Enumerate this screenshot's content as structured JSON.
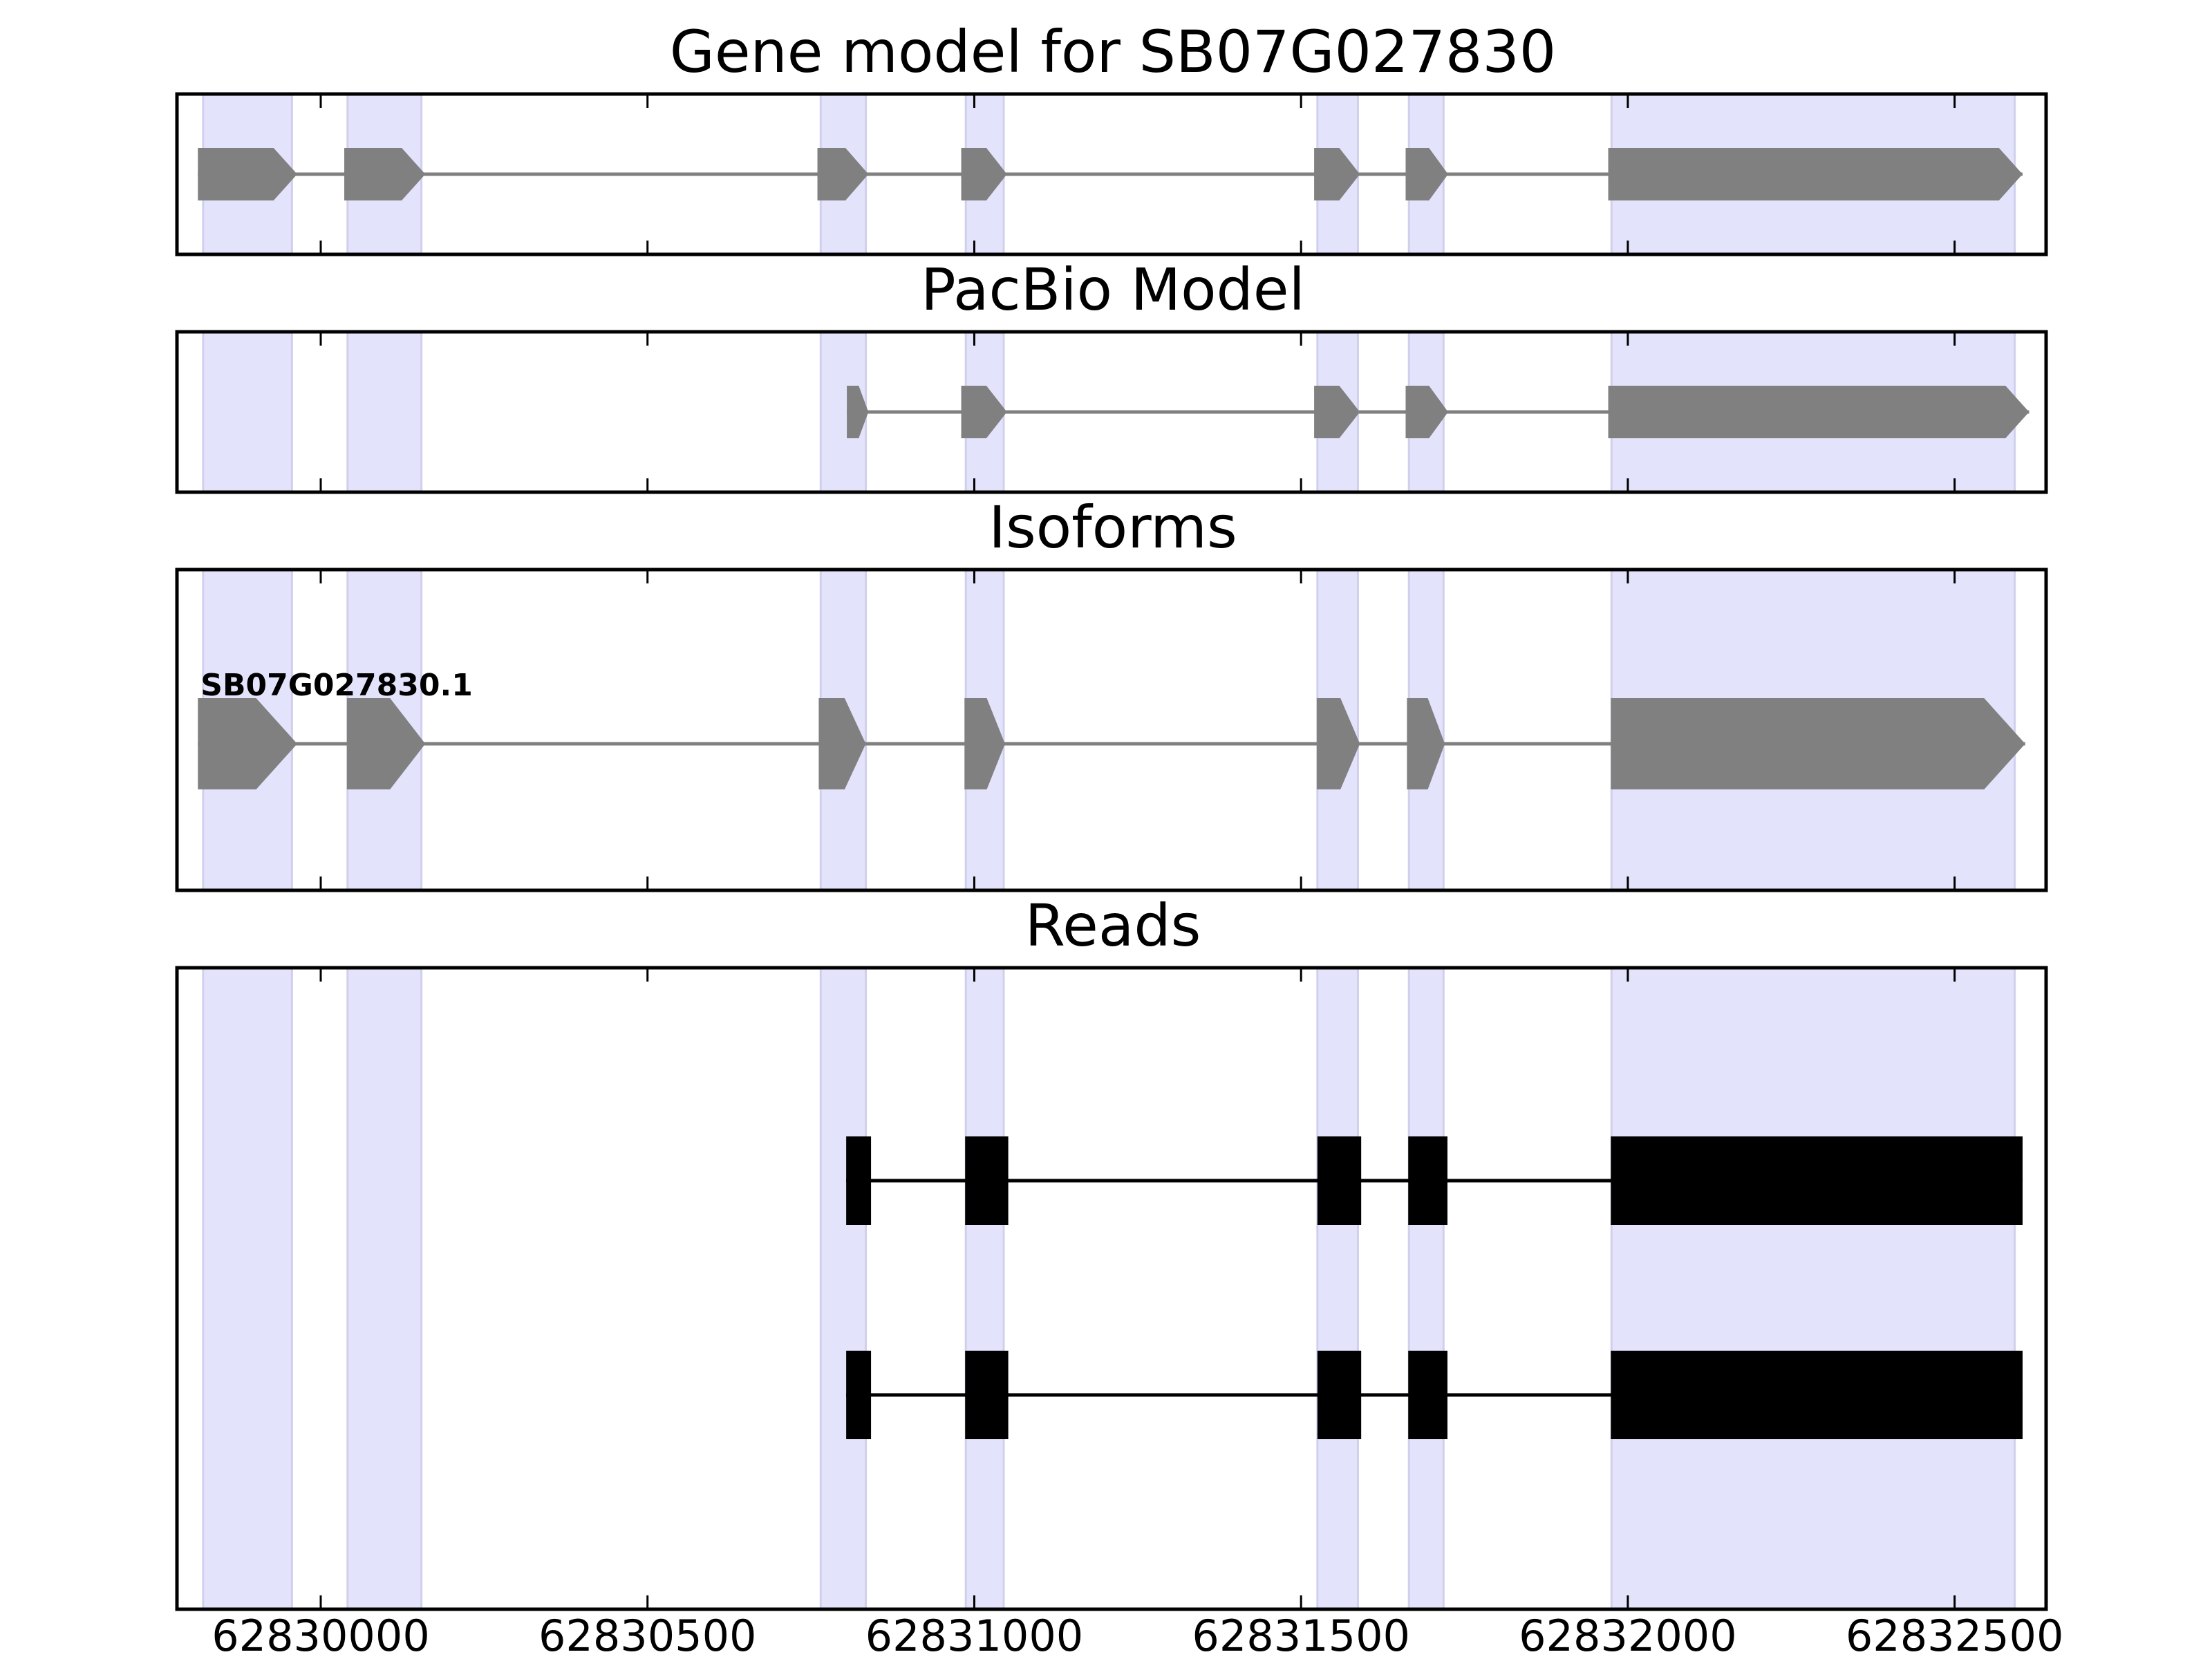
{
  "chart_data": {
    "type": "gene-model",
    "colors": {
      "exon_band": "#e3e3fb",
      "exon_band_edge": "#d0d0ee",
      "model_feature": "#808080",
      "read_feature": "#000000",
      "frame": "#000000"
    },
    "xaxis": {
      "range": [
        62829780,
        62832640
      ],
      "ticks": [
        62830000,
        62830500,
        62831000,
        62831500,
        62832000,
        62832500
      ],
      "tick_labels": [
        "62830000",
        "62830500",
        "62831000",
        "62831500",
        "62832000",
        "62832500"
      ]
    },
    "exon_bands": [
      [
        62829820,
        62829956
      ],
      [
        62830041,
        62830154
      ],
      [
        62830765,
        62830834
      ],
      [
        62830987,
        62831045
      ],
      [
        62831525,
        62831587
      ],
      [
        62831665,
        62831718
      ],
      [
        62831975,
        62832592
      ]
    ],
    "panels": [
      {
        "title": "Gene model for SB07G027830",
        "tracks": [
          {
            "label": "",
            "style": "arrow",
            "exons": [
              [
                62829812,
                62829964
              ],
              [
                62830036,
                62830160
              ],
              [
                62830760,
                62830838
              ],
              [
                62830980,
                62831050
              ],
              [
                62831520,
                62831590
              ],
              [
                62831660,
                62831725
              ],
              [
                62831970,
                62832604
              ]
            ]
          }
        ]
      },
      {
        "title": "PacBio Model",
        "tracks": [
          {
            "label": "",
            "style": "arrow",
            "exons": [
              [
                62830805,
                62830838
              ],
              [
                62830980,
                62831050
              ],
              [
                62831520,
                62831590
              ],
              [
                62831660,
                62831725
              ],
              [
                62831970,
                62832614
              ]
            ]
          }
        ]
      },
      {
        "title": "Isoforms",
        "tracks": [
          {
            "label": "SB07G027830.1",
            "style": "arrow",
            "exons": [
              [
                62829812,
                62829964
              ],
              [
                62830040,
                62830160
              ],
              [
                62830762,
                62830834
              ],
              [
                62830985,
                62831047
              ],
              [
                62831524,
                62831590
              ],
              [
                62831662,
                62831720
              ],
              [
                62831974,
                62832608
              ]
            ]
          }
        ]
      },
      {
        "title": "Reads",
        "tracks": [
          {
            "label": "",
            "style": "box",
            "exons": [
              [
                62830804,
                62830842
              ],
              [
                62830986,
                62831052
              ],
              [
                62831525,
                62831592
              ],
              [
                62831664,
                62831724
              ],
              [
                62831974,
                62832604
              ]
            ]
          },
          {
            "label": "",
            "style": "box",
            "exons": [
              [
                62830804,
                62830842
              ],
              [
                62830986,
                62831052
              ],
              [
                62831525,
                62831592
              ],
              [
                62831664,
                62831724
              ],
              [
                62831974,
                62832604
              ]
            ]
          }
        ]
      }
    ]
  }
}
